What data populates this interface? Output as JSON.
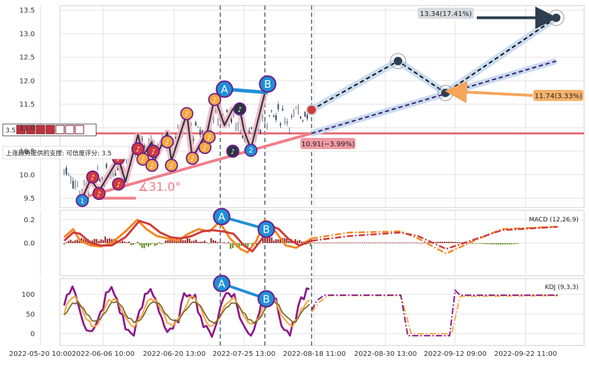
{
  "chart_data": {
    "type": "line",
    "x_ticks": [
      "2022-05-20 10:00",
      "2022-06-06 10:00",
      "2022-06-20 13:00",
      "2022-07-25 13:00",
      "2022-08-18 11:00",
      "2022-08-30 13:00",
      "2022-09-12 09:00",
      "2022-09-22 11:00"
    ],
    "main": {
      "ylim": [
        9.3,
        13.6
      ],
      "y_ticks": [
        "9.5",
        "10.0",
        "10.5",
        "11.0",
        "11.5",
        "12.0",
        "12.5",
        "13.0",
        "13.5"
      ],
      "support_level": 10.88,
      "support_tag": "3.5",
      "support_text": "上涨趋势提供的支撑: 可信度评分: 3.5",
      "angle_label": "∡31.0°",
      "ann_high": "13.34(17.41%)",
      "ann_mid": "11.74(3.33%)",
      "ann_low": "10.91(−3.99%)",
      "points": {
        "A": "A",
        "B": "B",
        "n1": "1",
        "n2": "2"
      }
    },
    "macd": {
      "label": "MACD (12,26,9)",
      "ylim": [
        -0.28,
        0.28
      ],
      "y_ticks": [
        "0.2",
        "0.0"
      ]
    },
    "kdj": {
      "label": "KDJ (9,3,3)",
      "ylim": [
        -30,
        140
      ],
      "y_ticks": [
        "100",
        "50",
        "0"
      ]
    },
    "colors": {
      "support": "#e8707a",
      "trend": "#f07f8a",
      "forecast_up": "#3b1d6e",
      "macd_orange": "#f5871f",
      "macd_red": "#d0393a",
      "kdj_purple": "#8b1a8b",
      "point_blue": "#1f8fd6"
    }
  }
}
